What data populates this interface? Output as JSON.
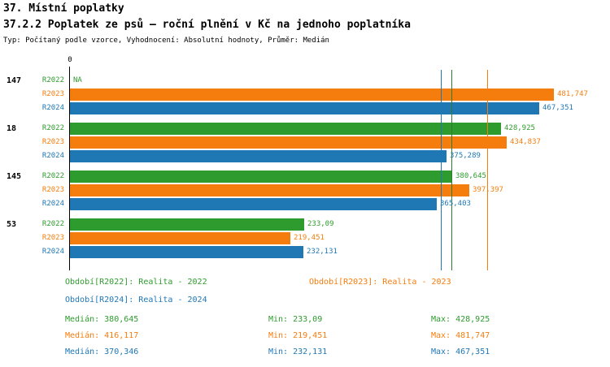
{
  "header": {
    "title": "37. Místní poplatky",
    "subtitle": "37.2.2 Poplatek ze psů – roční plnění v Kč na jednoho poplatníka",
    "meta": "Typ: Počítaný podle vzorce, Vyhodnocení: Absolutní hodnoty, Průměr: Medián"
  },
  "chart_data": {
    "type": "bar",
    "orientation": "horizontal",
    "zero_label": "0",
    "x_axis": {
      "min": 0,
      "unit": "Kč"
    },
    "categories": [
      "147",
      "18",
      "145",
      "53"
    ],
    "series": [
      {
        "name": "R2022",
        "color": "#2e9b2e",
        "values": [
          null,
          428.925,
          380.645,
          233.09
        ],
        "labels": [
          "NA",
          "428,925",
          "380,645",
          "233,09"
        ]
      },
      {
        "name": "R2023",
        "color": "#f57d0e",
        "values": [
          481.747,
          434.837,
          397.397,
          219.451
        ],
        "labels": [
          "481,747",
          "434,837",
          "397,397",
          "219,451"
        ]
      },
      {
        "name": "R2024",
        "color": "#1f77b4",
        "values": [
          467.351,
          375.289,
          365.403,
          232.131
        ],
        "labels": [
          "467,351",
          "375,289",
          "365,403",
          "232,131"
        ]
      }
    ],
    "median_lines": [
      {
        "series": "R2022",
        "value": 380.645,
        "label": "380,645",
        "color": "#2e7d2e"
      },
      {
        "series": "R2023",
        "value": 416.117,
        "label": "416,117",
        "color": "#f57d0e"
      },
      {
        "series": "R2024",
        "value": 370.346,
        "label": "370,346",
        "color": "#1f77b4"
      }
    ]
  },
  "legend": {
    "items": [
      {
        "text": "Období[R2022]: Realita - 2022",
        "color": "#2e9b2e"
      },
      {
        "text": "Období[R2023]: Realita - 2023",
        "color": "#f57d0e"
      },
      {
        "text": "Období[R2024]: Realita - 2024",
        "color": "#1f77b4"
      }
    ]
  },
  "stats": {
    "rows": [
      {
        "series": "R2022",
        "color": "#2e9b2e",
        "median": "Medián: 380,645",
        "min": "Min: 233,09",
        "max": "Max: 428,925"
      },
      {
        "series": "R2023",
        "color": "#f57d0e",
        "median": "Medián: 416,117",
        "min": "Min: 219,451",
        "max": "Max: 481,747"
      },
      {
        "series": "R2024",
        "color": "#1f77b4",
        "median": "Medián: 370,346",
        "min": "Min: 232,131",
        "max": "Max: 467,351"
      }
    ]
  }
}
